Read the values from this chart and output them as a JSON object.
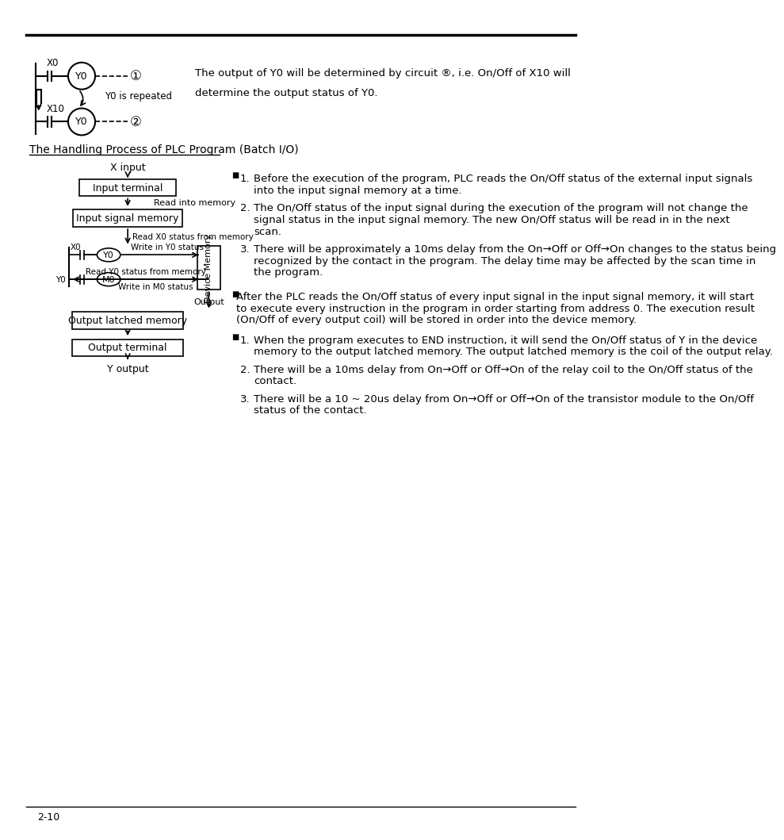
{
  "bg_color": "#ffffff",
  "text_color": "#000000",
  "page_number": "2-10",
  "section_title": "The Handling Process of PLC Program (Batch I/O)",
  "right_text_top_line1": "The output of Y0 will be determined by circuit ®, i.e. On/Off of X10 will",
  "right_text_top_line2": "determine the output status of Y0.",
  "flowchart": {
    "x_input": "X input",
    "input_terminal": "Input terminal",
    "read_into_memory": "Read into memory",
    "input_signal_memory": "Input signal memory",
    "read_x0_status": "Read X0 status from memory",
    "x0_label": "X0",
    "y0_coil": "Y0",
    "write_y0": "Write in Y0 status",
    "y0_contact": "Y0",
    "m0_coil": "M0",
    "read_y0_status": "Read Y0 status from memory",
    "write_m0": "Write in M0 status",
    "device_memory": "Device Memory",
    "output_label": "Output",
    "output_latched": "Output latched memory",
    "output_terminal": "Output terminal",
    "y_output": "Y output"
  },
  "bullet1_items": [
    "Before the execution of the program, PLC reads the On/Off status of the external input signals into the input signal memory at a time.",
    "The On/Off status of the input signal during the execution of the program will not change the signal status in the input signal memory. The new On/Off status will be read in in the next scan.",
    "There will be approximately a 10ms delay from the On→Off or Off→On changes to the status being recognized by the contact in the program. The delay time may be affected by the scan time in the program."
  ],
  "bullet2_text": "After the PLC reads the On/Off status of every input signal in the input signal memory, it will start to execute every instruction in the program in order starting from address 0. The execution result (On/Off of every output coil) will be stored in order into the device memory.",
  "bullet3_items": [
    "When the program executes to END instruction, it will send the On/Off status of Y in the device memory to the output latched memory. The output latched memory is the coil of the output relay.",
    "There will be a 10ms delay from On→Off or Off→On of the relay coil to the On/Off status of the contact.",
    "There will be a 10 ~ 20us delay from On→Off or Off→On of the transistor module to the On/Off status of the contact."
  ]
}
